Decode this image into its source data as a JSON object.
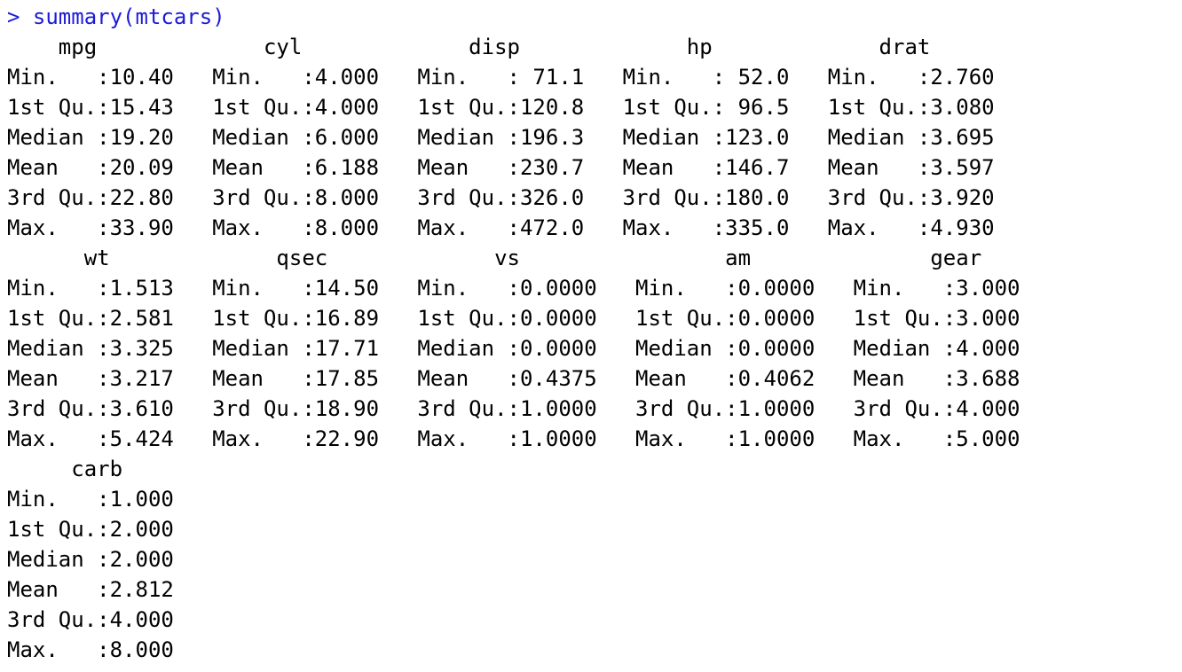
{
  "console": {
    "prompt_symbol": ">",
    "command": "summary(mtcars)",
    "output_lines": [
      "    mpg             cyl             disp             hp             drat      ",
      "Min.   :10.40   Min.   :4.000   Min.   : 71.1   Min.   : 52.0   Min.   :2.760  ",
      "1st Qu.:15.43   1st Qu.:4.000   1st Qu.:120.8   1st Qu.: 96.5   1st Qu.:3.080  ",
      "Median :19.20   Median :6.000   Median :196.3   Median :123.0   Median :3.695  ",
      "Mean   :20.09   Mean   :6.188   Mean   :230.7   Mean   :146.7   Mean   :3.597  ",
      "3rd Qu.:22.80   3rd Qu.:8.000   3rd Qu.:326.0   3rd Qu.:180.0   3rd Qu.:3.920  ",
      "Max.   :33.90   Max.   :8.000   Max.   :472.0   Max.   :335.0   Max.   :4.930  ",
      "      wt             qsec             vs                am              gear      ",
      "Min.   :1.513   Min.   :14.50   Min.   :0.0000   Min.   :0.0000   Min.   :3.000  ",
      "1st Qu.:2.581   1st Qu.:16.89   1st Qu.:0.0000   1st Qu.:0.0000   1st Qu.:3.000  ",
      "Median :3.325   Median :17.71   Median :0.0000   Median :0.0000   Median :4.000  ",
      "Mean   :3.217   Mean   :17.85   Mean   :0.4375   Mean   :0.4062   Mean   :3.688  ",
      "3rd Qu.:3.610   3rd Qu.:18.90   3rd Qu.:1.0000   3rd Qu.:1.0000   3rd Qu.:4.000  ",
      "Max.   :5.424   Max.   :22.90   Max.   :1.0000   Max.   :1.0000   Max.   :5.000  ",
      "     carb      ",
      "Min.   :1.000  ",
      "1st Qu.:2.000  ",
      "Median :2.000  ",
      "Mean   :2.812  ",
      "3rd Qu.:4.000  ",
      "Max.   :8.000  "
    ]
  }
}
